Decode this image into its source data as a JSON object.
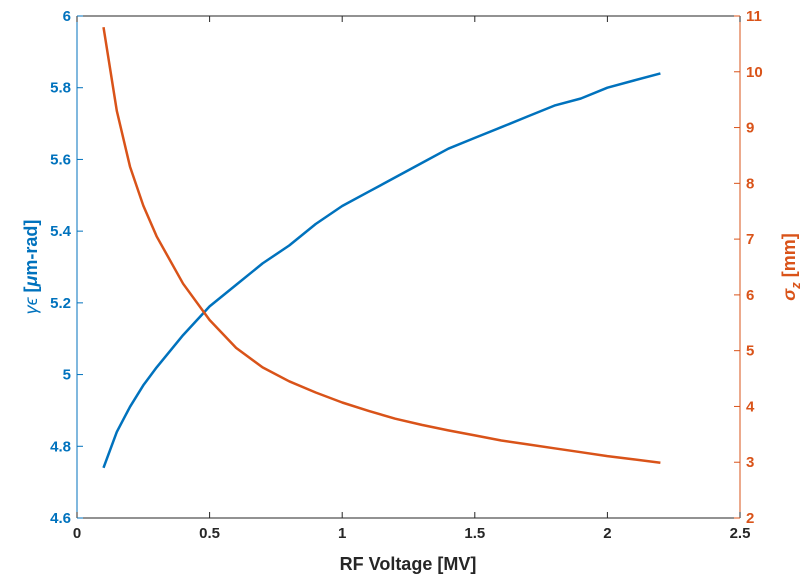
{
  "chart_data": {
    "type": "line",
    "title": "",
    "xlabel": "RF Voltage [MV]",
    "xlim": [
      0,
      2.5
    ],
    "xticks": [
      0,
      0.5,
      1,
      1.5,
      2,
      2.5
    ],
    "xtick_labels": [
      "0",
      "0.5",
      "1",
      "1.5",
      "2",
      "2.5"
    ],
    "grid": false,
    "legend": "none",
    "colors": {
      "left": "#0072BD",
      "right": "#D95319",
      "frame": "#262626"
    },
    "left_axis": {
      "label_parts": [
        "γϵ [",
        "μ",
        "m-rad]"
      ],
      "ylim": [
        4.6,
        6.0
      ],
      "ticks": [
        4.6,
        4.8,
        5.0,
        5.2,
        5.4,
        5.6,
        5.8,
        6.0
      ],
      "tick_labels": [
        "4.6",
        "4.8",
        "5",
        "5.2",
        "5.4",
        "5.6",
        "5.8",
        "6"
      ]
    },
    "right_axis": {
      "label_parts": [
        "σ",
        "z",
        " [mm]"
      ],
      "ylim": [
        2,
        11
      ],
      "ticks": [
        2,
        3,
        4,
        5,
        6,
        7,
        8,
        9,
        10,
        11
      ],
      "tick_labels": [
        "2",
        "3",
        "4",
        "5",
        "6",
        "7",
        "8",
        "9",
        "10",
        "11"
      ]
    },
    "series": [
      {
        "axis": "left",
        "color": "#0072BD",
        "x": [
          0.1,
          0.15,
          0.2,
          0.25,
          0.3,
          0.4,
          0.5,
          0.6,
          0.7,
          0.8,
          0.9,
          1.0,
          1.1,
          1.2,
          1.3,
          1.4,
          1.5,
          1.6,
          1.7,
          1.8,
          1.9,
          2.0,
          2.1,
          2.2
        ],
        "y": [
          4.74,
          4.84,
          4.91,
          4.97,
          5.02,
          5.11,
          5.19,
          5.25,
          5.31,
          5.36,
          5.42,
          5.47,
          5.51,
          5.55,
          5.59,
          5.63,
          5.66,
          5.69,
          5.72,
          5.75,
          5.77,
          5.8,
          5.82,
          5.84
        ]
      },
      {
        "axis": "right",
        "color": "#D95319",
        "x": [
          0.1,
          0.15,
          0.2,
          0.25,
          0.3,
          0.4,
          0.5,
          0.6,
          0.7,
          0.8,
          0.9,
          1.0,
          1.1,
          1.2,
          1.3,
          1.4,
          1.5,
          1.6,
          1.7,
          1.8,
          1.9,
          2.0,
          2.1,
          2.2
        ],
        "y": [
          10.8,
          9.3,
          8.3,
          7.6,
          7.05,
          6.2,
          5.55,
          5.05,
          4.7,
          4.45,
          4.25,
          4.07,
          3.92,
          3.78,
          3.67,
          3.57,
          3.48,
          3.39,
          3.32,
          3.25,
          3.18,
          3.11,
          3.05,
          2.99
        ]
      }
    ]
  }
}
